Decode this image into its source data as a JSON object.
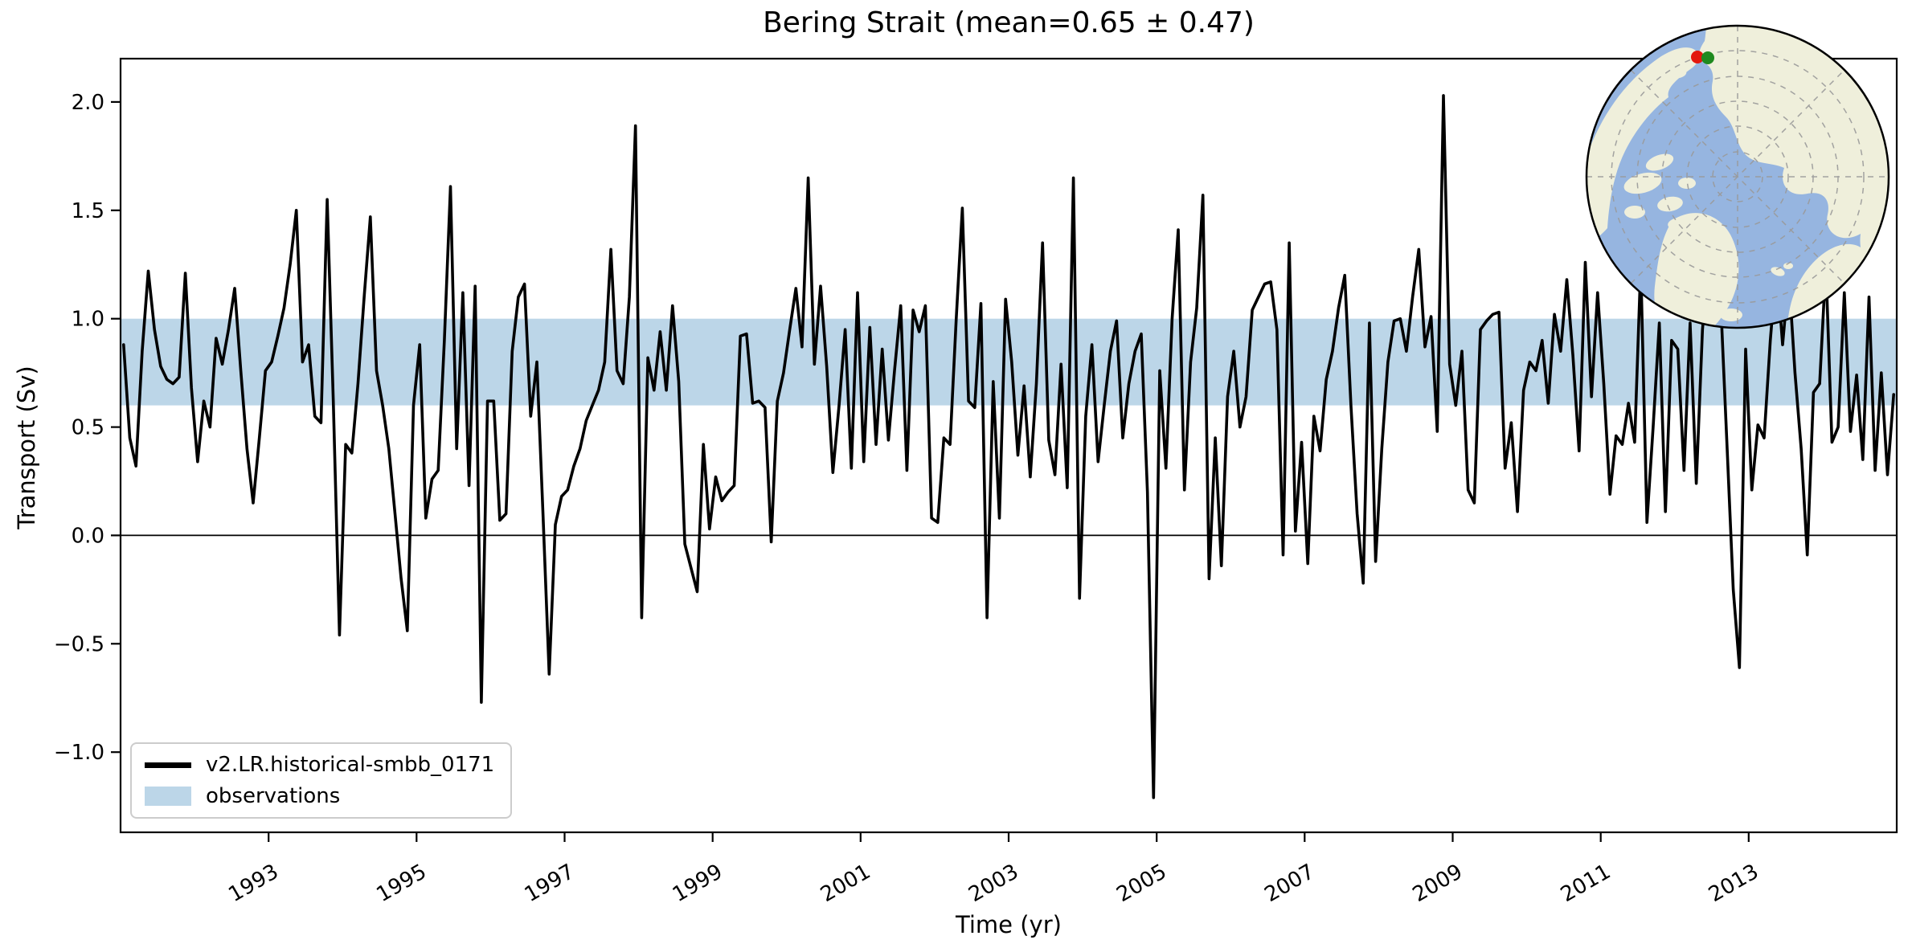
{
  "title": "Bering Strait (mean=0.65 ± 0.47)",
  "axes": {
    "xlabel": "Time (yr)",
    "ylabel": "Transport (Sv)",
    "xtick_labels": [
      "1993",
      "1995",
      "1997",
      "1999",
      "2001",
      "2003",
      "2005",
      "2007",
      "2009",
      "2011",
      "2013"
    ],
    "xtick_values": [
      1993,
      1995,
      1997,
      1999,
      2001,
      2003,
      2005,
      2007,
      2009,
      2011,
      2013
    ],
    "ytick_labels": [
      "2.0",
      "1.5",
      "1.0",
      "0.5",
      "0.0",
      "−0.5",
      "−1.0"
    ],
    "ytick_values": [
      2.0,
      1.5,
      1.0,
      0.5,
      0.0,
      -0.5,
      -1.0
    ]
  },
  "legend": {
    "series_label": "v2.LR.historical-smbb_0171",
    "band_label": "observations"
  },
  "colors": {
    "series_line": "#000000",
    "observations_band": "#bcd6e8",
    "zero_line": "#000000",
    "spine": "#000000"
  },
  "chart_data": {
    "type": "line",
    "title": "Bering Strait (mean=0.65 ± 0.47)",
    "xlabel": "Time (yr)",
    "ylabel": "Transport (Sv)",
    "series_name": "v2.LR.historical-smbb_0171",
    "mean": 0.65,
    "std": 0.47,
    "x_start_year": 1991,
    "x_step_years": 0.0833333,
    "x_is_monthly_centers": true,
    "xlim": [
      1991.0,
      2015.0
    ],
    "ylim": [
      -1.37,
      2.2
    ],
    "zero_line": true,
    "grid": false,
    "legend_position": "lower left",
    "observations_band": {
      "label": "observations",
      "low": 0.6,
      "high": 1.0
    },
    "values": [
      0.88,
      0.45,
      0.32,
      0.85,
      1.22,
      0.95,
      0.78,
      0.72,
      0.7,
      0.73,
      1.21,
      0.68,
      0.34,
      0.62,
      0.5,
      0.91,
      0.79,
      0.95,
      1.14,
      0.76,
      0.4,
      0.15,
      0.45,
      0.76,
      0.8,
      0.92,
      1.05,
      1.25,
      1.5,
      0.8,
      0.88,
      0.55,
      0.52,
      1.55,
      0.62,
      -0.46,
      0.42,
      0.38,
      0.7,
      1.1,
      1.47,
      0.76,
      0.6,
      0.4,
      0.1,
      -0.2,
      -0.44,
      0.6,
      0.88,
      0.08,
      0.26,
      0.3,
      0.9,
      1.61,
      0.4,
      1.12,
      0.23,
      1.15,
      -0.77,
      0.62,
      0.62,
      0.07,
      0.1,
      0.85,
      1.1,
      1.16,
      0.55,
      0.8,
      0.1,
      -0.64,
      0.05,
      0.18,
      0.21,
      0.32,
      0.4,
      0.53,
      0.6,
      0.67,
      0.8,
      1.32,
      0.76,
      0.7,
      1.1,
      1.89,
      -0.38,
      0.82,
      0.67,
      0.94,
      0.67,
      1.06,
      0.71,
      -0.04,
      -0.15,
      -0.26,
      0.42,
      0.03,
      0.27,
      0.16,
      0.2,
      0.23,
      0.92,
      0.93,
      0.61,
      0.62,
      0.59,
      -0.03,
      0.62,
      0.75,
      0.95,
      1.14,
      0.87,
      1.65,
      0.79,
      1.15,
      0.78,
      0.29,
      0.6,
      0.95,
      0.31,
      1.12,
      0.34,
      0.96,
      0.42,
      0.86,
      0.44,
      0.76,
      1.06,
      0.3,
      1.04,
      0.94,
      1.06,
      0.08,
      0.06,
      0.45,
      0.42,
      1.0,
      1.51,
      0.62,
      0.59,
      1.07,
      -0.38,
      0.71,
      0.08,
      1.09,
      0.8,
      0.37,
      0.69,
      0.27,
      0.7,
      1.35,
      0.44,
      0.28,
      0.79,
      0.22,
      1.65,
      -0.29,
      0.55,
      0.88,
      0.34,
      0.6,
      0.85,
      0.99,
      0.45,
      0.7,
      0.85,
      0.93,
      0.2,
      -1.21,
      0.76,
      0.31,
      1.0,
      1.41,
      0.21,
      0.8,
      1.05,
      1.57,
      -0.2,
      0.45,
      -0.14,
      0.64,
      0.85,
      0.5,
      0.64,
      1.04,
      1.1,
      1.16,
      1.17,
      0.95,
      -0.09,
      1.35,
      0.02,
      0.43,
      -0.13,
      0.55,
      0.39,
      0.72,
      0.85,
      1.05,
      1.2,
      0.6,
      0.1,
      -0.22,
      0.98,
      -0.12,
      0.4,
      0.8,
      0.99,
      1.0,
      0.85,
      1.1,
      1.32,
      0.87,
      1.01,
      0.48,
      2.03,
      0.79,
      0.6,
      0.85,
      0.21,
      0.15,
      0.95,
      0.99,
      1.02,
      1.03,
      0.31,
      0.52,
      0.11,
      0.67,
      0.8,
      0.76,
      0.9,
      0.61,
      1.02,
      0.85,
      1.18,
      0.83,
      0.39,
      1.26,
      0.64,
      1.12,
      0.7,
      0.19,
      0.46,
      0.42,
      0.61,
      0.43,
      1.25,
      0.06,
      0.5,
      0.98,
      0.11,
      0.9,
      0.86,
      0.3,
      0.98,
      0.24,
      0.95,
      1.28,
      1.2,
      1.05,
      0.4,
      -0.25,
      -0.61,
      0.86,
      0.21,
      0.51,
      0.45,
      0.9,
      1.25,
      0.88,
      1.2,
      0.75,
      0.4,
      -0.09,
      0.66,
      0.7,
      1.25,
      0.43,
      0.5,
      1.12,
      0.48,
      0.74,
      0.35,
      1.1,
      0.3,
      0.75,
      0.28,
      0.65
    ]
  },
  "inset_map": {
    "projection": "north-polar-stereographic",
    "colors": {
      "ocean": "#96b5e0",
      "land": "#efefdb",
      "graticule": "#9a9a9a",
      "border": "#000000"
    },
    "markers": [
      {
        "name": "bering-strait-marker-red",
        "color": "#e3170d"
      },
      {
        "name": "bering-strait-marker-green",
        "color": "#1f8a1f"
      }
    ]
  }
}
